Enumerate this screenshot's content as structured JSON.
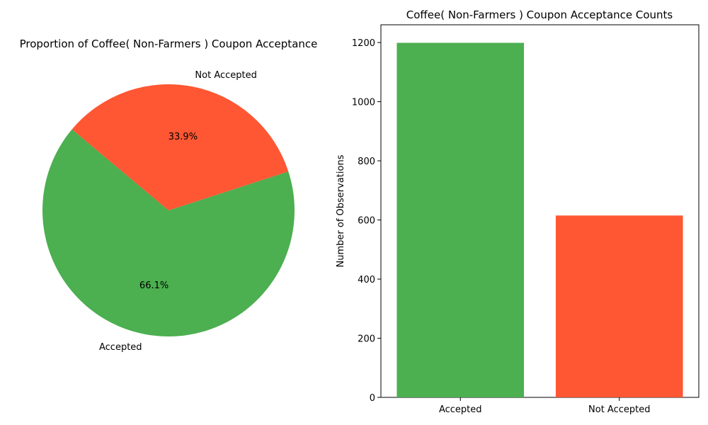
{
  "chart_data": [
    {
      "type": "pie",
      "title": "Proportion of Coffee( Non-Farmers ) Coupon Acceptance",
      "categories": [
        "Accepted",
        "Not Accepted"
      ],
      "values": [
        66.1,
        33.9
      ],
      "value_labels": [
        "66.1%",
        "33.9%"
      ],
      "colors": [
        "#4caf50",
        "#ff5733"
      ],
      "start_angle_deg": 140,
      "direction": "counterclockwise"
    },
    {
      "type": "bar",
      "title": "Coffee( Non-Farmers ) Coupon Acceptance Counts",
      "categories": [
        "Accepted",
        "Not Accepted"
      ],
      "values": [
        1199,
        615
      ],
      "colors": [
        "#4caf50",
        "#ff5733"
      ],
      "xlabel": "",
      "ylabel": "Number of Observations",
      "ylim": [
        0,
        1260
      ],
      "yticks": [
        0,
        200,
        400,
        600,
        800,
        1000,
        1200
      ],
      "grid": false
    }
  ]
}
